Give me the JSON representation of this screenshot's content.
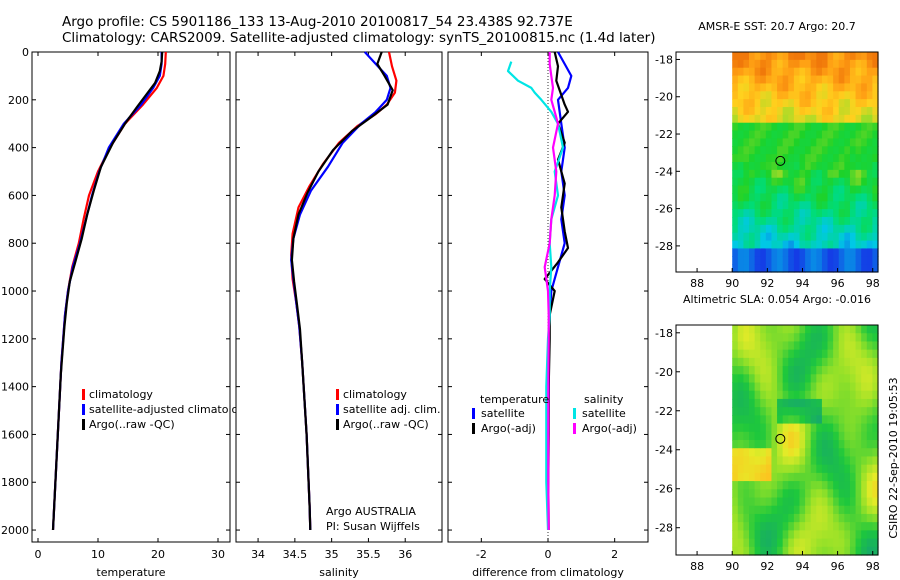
{
  "header": {
    "line1": "Argo profile: CS 5901186_133 13-Aug-2010 20100817_54 23.438S 92.737E",
    "line2": "Climatology: CARS2009. Satellite-adjusted climatology: synTS_20100815.nc (1.4d later)"
  },
  "side_label": "CSIRO 22-Sep-2010 19:05:53",
  "colors": {
    "climatology": "#ff0000",
    "satellite": "#0000ff",
    "argo": "#000000",
    "sal_satellite": "#00e5e5",
    "sal_argo": "#ff00ff"
  },
  "chart_data": [
    {
      "type": "line",
      "id": "temperature",
      "xlabel": "temperature",
      "xlim": [
        -1,
        32
      ],
      "ylim": [
        0,
        2050
      ],
      "y_inverted": true,
      "xticks": [
        0,
        10,
        20,
        30
      ],
      "yticks": [
        0,
        200,
        400,
        600,
        800,
        1000,
        1200,
        1400,
        1600,
        1800,
        2000
      ],
      "legend": [
        "climatology",
        "satellite-adjusted climatology",
        "Argo(..raw -QC)"
      ],
      "series": [
        {
          "name": "climatology",
          "color": "#ff0000",
          "points": [
            [
              21.3,
              0
            ],
            [
              21.2,
              50
            ],
            [
              20.9,
              100
            ],
            [
              19.8,
              150
            ],
            [
              17.5,
              220
            ],
            [
              14.5,
              300
            ],
            [
              12,
              400
            ],
            [
              10,
              500
            ],
            [
              8.5,
              600
            ],
            [
              7.6,
              700
            ],
            [
              6.8,
              800
            ],
            [
              5.7,
              900
            ],
            [
              5,
              1000
            ],
            [
              4.5,
              1100
            ],
            [
              4.2,
              1200
            ],
            [
              3.9,
              1300
            ],
            [
              3.7,
              1400
            ],
            [
              3.5,
              1500
            ],
            [
              3.3,
              1600
            ],
            [
              3.1,
              1700
            ],
            [
              2.9,
              1800
            ],
            [
              2.7,
              1900
            ],
            [
              2.5,
              2000
            ]
          ]
        },
        {
          "name": "satellite-adjusted climatology",
          "color": "#0000ff",
          "points": [
            [
              20.6,
              0
            ],
            [
              20.6,
              50
            ],
            [
              20.3,
              100
            ],
            [
              19.2,
              150
            ],
            [
              17.2,
              220
            ],
            [
              14.3,
              300
            ],
            [
              11.8,
              400
            ],
            [
              10.2,
              500
            ],
            [
              9,
              600
            ],
            [
              8,
              700
            ],
            [
              7,
              800
            ],
            [
              5.8,
              900
            ],
            [
              5,
              1000
            ],
            [
              4.5,
              1100
            ],
            [
              4.2,
              1200
            ],
            [
              3.9,
              1300
            ],
            [
              3.7,
              1400
            ],
            [
              3.5,
              1500
            ],
            [
              3.3,
              1600
            ],
            [
              3.1,
              1700
            ],
            [
              2.9,
              1800
            ],
            [
              2.7,
              1900
            ],
            [
              2.5,
              2000
            ]
          ]
        },
        {
          "name": "Argo(..raw -QC)",
          "color": "#000000",
          "points": [
            [
              20.7,
              0
            ],
            [
              20.6,
              40
            ],
            [
              20.3,
              80
            ],
            [
              19.5,
              130
            ],
            [
              18,
              180
            ],
            [
              16.5,
              230
            ],
            [
              14.5,
              300
            ],
            [
              12.5,
              380
            ],
            [
              10.5,
              480
            ],
            [
              9.3,
              580
            ],
            [
              8.2,
              680
            ],
            [
              7.3,
              780
            ],
            [
              6.2,
              880
            ],
            [
              5.3,
              960
            ],
            [
              4.8,
              1050
            ],
            [
              4.4,
              1150
            ],
            [
              4.1,
              1250
            ],
            [
              3.8,
              1350
            ],
            [
              3.6,
              1450
            ],
            [
              3.4,
              1550
            ],
            [
              3.2,
              1650
            ],
            [
              3,
              1750
            ],
            [
              2.8,
              1850
            ],
            [
              2.6,
              1950
            ],
            [
              2.5,
              2000
            ]
          ]
        }
      ],
      "note": []
    },
    {
      "type": "line",
      "id": "salinity",
      "xlabel": "salinity",
      "xlim": [
        33.7,
        36.5
      ],
      "ylim": [
        0,
        2050
      ],
      "y_inverted": true,
      "xticks": [
        34,
        34.5,
        35,
        35.5,
        36
      ],
      "yticks": [
        0,
        200,
        400,
        600,
        800,
        1000,
        1200,
        1400,
        1600,
        1800,
        2000
      ],
      "legend": [
        "climatology",
        "satellite adj. clim.",
        "Argo(..raw -QC)"
      ],
      "series": [
        {
          "name": "climatology",
          "color": "#ff0000",
          "points": [
            [
              35.78,
              0
            ],
            [
              35.82,
              60
            ],
            [
              35.88,
              120
            ],
            [
              35.86,
              170
            ],
            [
              35.75,
              220
            ],
            [
              35.6,
              260
            ],
            [
              35.35,
              310
            ],
            [
              35.1,
              380
            ],
            [
              34.88,
              470
            ],
            [
              34.7,
              560
            ],
            [
              34.55,
              650
            ],
            [
              34.47,
              760
            ],
            [
              34.45,
              850
            ],
            [
              34.47,
              950
            ],
            [
              34.52,
              1050
            ],
            [
              34.56,
              1150
            ],
            [
              34.6,
              1300
            ],
            [
              34.63,
              1450
            ],
            [
              34.66,
              1600
            ],
            [
              34.68,
              1750
            ],
            [
              34.7,
              1900
            ],
            [
              34.71,
              2000
            ]
          ]
        },
        {
          "name": "satellite adj. clim.",
          "color": "#0000ff",
          "points": [
            [
              35.45,
              0
            ],
            [
              35.6,
              50
            ],
            [
              35.75,
              100
            ],
            [
              35.8,
              150
            ],
            [
              35.75,
              200
            ],
            [
              35.6,
              250
            ],
            [
              35.4,
              300
            ],
            [
              35.15,
              380
            ],
            [
              34.95,
              480
            ],
            [
              34.72,
              580
            ],
            [
              34.57,
              680
            ],
            [
              34.48,
              780
            ],
            [
              34.45,
              870
            ],
            [
              34.48,
              950
            ],
            [
              34.52,
              1050
            ],
            [
              34.56,
              1150
            ],
            [
              34.6,
              1300
            ],
            [
              34.63,
              1450
            ],
            [
              34.66,
              1600
            ],
            [
              34.68,
              1750
            ],
            [
              34.7,
              1900
            ],
            [
              34.71,
              2000
            ]
          ]
        },
        {
          "name": "Argo(..raw -QC)",
          "color": "#000000",
          "points": [
            [
              35.68,
              0
            ],
            [
              35.62,
              50
            ],
            [
              35.72,
              100
            ],
            [
              35.83,
              160
            ],
            [
              35.76,
              220
            ],
            [
              35.55,
              270
            ],
            [
              35.28,
              330
            ],
            [
              35.02,
              410
            ],
            [
              34.82,
              500
            ],
            [
              34.67,
              590
            ],
            [
              34.55,
              680
            ],
            [
              34.48,
              780
            ],
            [
              34.46,
              870
            ],
            [
              34.49,
              960
            ],
            [
              34.53,
              1060
            ],
            [
              34.57,
              1160
            ],
            [
              34.6,
              1300
            ],
            [
              34.63,
              1450
            ],
            [
              34.66,
              1600
            ],
            [
              34.68,
              1750
            ],
            [
              34.7,
              1900
            ],
            [
              34.71,
              2000
            ]
          ]
        }
      ],
      "note": [
        "Argo AUSTRALIA",
        "PI: Susan Wijffels"
      ]
    },
    {
      "type": "line",
      "id": "difference",
      "xlabel": "difference from climatology",
      "xlim": [
        -3,
        3
      ],
      "ylim": [
        0,
        2050
      ],
      "y_inverted": true,
      "xticks": [
        -2,
        0,
        2
      ],
      "yticks": [
        0,
        200,
        400,
        600,
        800,
        1000,
        1200,
        1400,
        1600,
        1800,
        2000
      ],
      "legend_titles": [
        "temperature",
        "salinity"
      ],
      "legend": [
        "satellite",
        "Argo(-adj)",
        "satellite",
        "Argo(-adj)"
      ],
      "series": [
        {
          "name": "temperature satellite",
          "color": "#0000ff",
          "points": [
            [
              0.3,
              0
            ],
            [
              0.5,
              50
            ],
            [
              0.7,
              100
            ],
            [
              0.6,
              150
            ],
            [
              0.3,
              200
            ],
            [
              0.4,
              300
            ],
            [
              0.5,
              400
            ],
            [
              0.4,
              500
            ],
            [
              0.5,
              600
            ],
            [
              0.4,
              700
            ],
            [
              0.5,
              800
            ],
            [
              0.3,
              900
            ],
            [
              0.1,
              1000
            ],
            [
              0.05,
              1100
            ],
            [
              0.02,
              1200
            ],
            [
              0.02,
              1400
            ],
            [
              0.01,
              1600
            ],
            [
              0.01,
              1800
            ],
            [
              0.01,
              2000
            ]
          ]
        },
        {
          "name": "temperature Argo(-adj)",
          "color": "#000000",
          "points": [
            [
              0.2,
              0
            ],
            [
              0.3,
              60
            ],
            [
              0.25,
              120
            ],
            [
              0.5,
              220
            ],
            [
              0.6,
              250
            ],
            [
              0.3,
              300
            ],
            [
              0.5,
              380
            ],
            [
              0.3,
              450
            ],
            [
              0.5,
              550
            ],
            [
              0.4,
              650
            ],
            [
              0.5,
              750
            ],
            [
              0.6,
              820
            ],
            [
              0.3,
              880
            ],
            [
              -0.1,
              950
            ],
            [
              0.2,
              1000
            ],
            [
              0.05,
              1100
            ],
            [
              0.05,
              1200
            ],
            [
              0.02,
              1400
            ],
            [
              0.02,
              1600
            ],
            [
              0.01,
              1800
            ],
            [
              0.02,
              2000
            ]
          ]
        },
        {
          "name": "salinity satellite",
          "color": "#00e5e5",
          "points": [
            [
              -1.1,
              40
            ],
            [
              -1.2,
              80
            ],
            [
              -0.9,
              120
            ],
            [
              -0.5,
              150
            ],
            [
              -0.4,
              170
            ],
            [
              -0.2,
              200
            ],
            [
              0.1,
              250
            ],
            [
              0.3,
              300
            ],
            [
              0.45,
              400
            ],
            [
              0.2,
              500
            ],
            [
              0.3,
              600
            ],
            [
              0.1,
              700
            ],
            [
              0.05,
              800
            ],
            [
              0.1,
              900
            ],
            [
              0.05,
              1000
            ],
            [
              0.05,
              1100
            ],
            [
              0,
              1200
            ],
            [
              -0.05,
              1400
            ],
            [
              -0.05,
              1600
            ],
            [
              -0.05,
              1800
            ],
            [
              0,
              2000
            ]
          ]
        },
        {
          "name": "salinity Argo(-adj)",
          "color": "#ff00ff",
          "points": [
            [
              0.05,
              0
            ],
            [
              0.05,
              50
            ],
            [
              0.1,
              100
            ],
            [
              0.15,
              150
            ],
            [
              0.1,
              200
            ],
            [
              0.2,
              250
            ],
            [
              0.3,
              300
            ],
            [
              0.15,
              400
            ],
            [
              0.25,
              500
            ],
            [
              0.2,
              600
            ],
            [
              0.1,
              700
            ],
            [
              0.05,
              800
            ],
            [
              -0.1,
              900
            ],
            [
              0,
              1000
            ],
            [
              0.02,
              1100
            ],
            [
              0.02,
              1200
            ],
            [
              0.01,
              1400
            ],
            [
              0.01,
              1600
            ],
            [
              0.01,
              1800
            ],
            [
              0.02,
              2000
            ]
          ]
        }
      ],
      "note": []
    }
  ],
  "maps": [
    {
      "id": "sst",
      "title": "AMSR-E SST: 20.7 Argo: 20.7",
      "xticks": [
        88,
        90,
        92,
        94,
        96,
        98
      ],
      "yticks": [
        -18,
        -20,
        -22,
        -24,
        -26,
        -28
      ],
      "xlim": [
        86.8,
        98.3
      ],
      "ylim": [
        -29.4,
        -17.6
      ],
      "data_lon_min": 90,
      "marker": [
        92.74,
        -23.44
      ]
    },
    {
      "id": "sla",
      "title": "Altimetric SLA: 0.054 Argo: -0.016",
      "xticks": [
        88,
        90,
        92,
        94,
        96,
        98
      ],
      "yticks": [
        -18,
        -20,
        -22,
        -24,
        -26,
        -28
      ],
      "xlim": [
        86.8,
        98.3
      ],
      "ylim": [
        -29.4,
        -17.6
      ],
      "data_lon_min": 90,
      "marker": [
        92.74,
        -23.44
      ]
    }
  ]
}
